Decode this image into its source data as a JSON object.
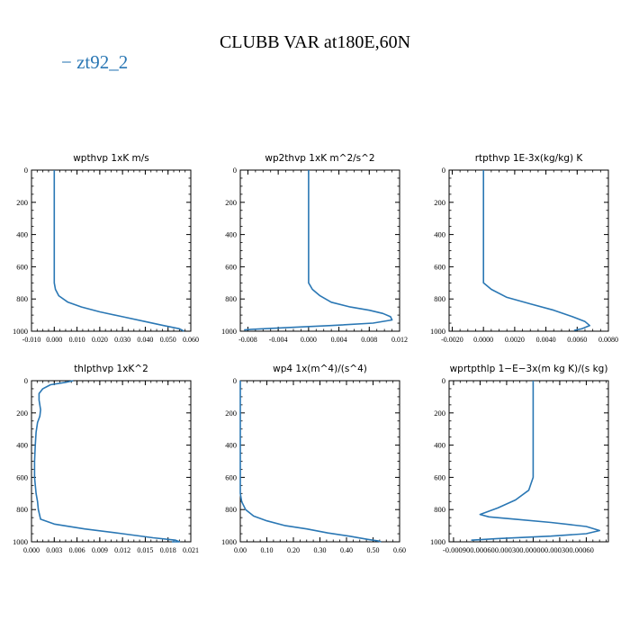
{
  "title": "CLUBB VAR at180E,60N",
  "legend": [
    {
      "label": "− zt92_2",
      "color": "#2a77b4"
    }
  ],
  "series_color": "#2a77b4",
  "chart_data": [
    {
      "type": "line",
      "title": "wpthvp  1xK m/s",
      "xlim": [
        -0.01,
        0.06
      ],
      "ylim": [
        0,
        1000
      ],
      "y_inverted": true,
      "xticks": [
        "-0.010",
        "0.000",
        "0.010",
        "0.020",
        "0.030",
        "0.040",
        "0.050",
        "0.060"
      ],
      "yticks": [
        "0",
        "200",
        "400",
        "600",
        "800",
        "1000"
      ],
      "series": [
        {
          "x": [
            0.0,
            0.0,
            0.0,
            0.0,
            0.0,
            0.0,
            0.0,
            0.0,
            0.0005,
            0.002,
            0.006,
            0.012,
            0.02,
            0.03,
            0.04,
            0.048,
            0.055,
            0.057
          ],
          "y": [
            0,
            100,
            200,
            300,
            400,
            500,
            600,
            700,
            740,
            780,
            820,
            850,
            880,
            910,
            940,
            965,
            985,
            1000
          ]
        }
      ]
    },
    {
      "type": "line",
      "title": "wp2thvp  1xK m^2/s^2",
      "xlim": [
        -0.009,
        0.012
      ],
      "ylim": [
        0,
        1000
      ],
      "y_inverted": true,
      "xticks": [
        "-0.008",
        "-0.004",
        "0.000",
        "0.004",
        "0.008",
        "0.012"
      ],
      "yticks": [
        "0",
        "200",
        "400",
        "600",
        "800",
        "1000"
      ],
      "series": [
        {
          "x": [
            0.0,
            0.0,
            0.0,
            0.0,
            0.0,
            0.0,
            0.0,
            0.0,
            0.0005,
            0.0015,
            0.003,
            0.0055,
            0.008,
            0.0098,
            0.0108,
            0.011,
            0.0085,
            0.003,
            -0.003,
            -0.0075,
            -0.0085
          ],
          "y": [
            0,
            100,
            200,
            300,
            400,
            500,
            600,
            700,
            740,
            780,
            820,
            850,
            870,
            890,
            910,
            930,
            950,
            965,
            978,
            988,
            992
          ]
        }
      ]
    },
    {
      "type": "line",
      "title": "rtpthvp  1E-3x(kg/kg) K",
      "xlim": [
        -0.0022,
        0.008
      ],
      "ylim": [
        0,
        1000
      ],
      "y_inverted": true,
      "xticks": [
        "-0.0020",
        "0.0000",
        "0.0020",
        "0.0040",
        "0.0060",
        "0.0080"
      ],
      "yticks": [
        "0",
        "200",
        "400",
        "600",
        "800",
        "1000"
      ],
      "series": [
        {
          "x": [
            0.0,
            0.0,
            0.0,
            0.0,
            0.0,
            0.0,
            0.0,
            0.0,
            0.0005,
            0.0015,
            0.003,
            0.0045,
            0.0057,
            0.0065,
            0.0068,
            0.0063,
            0.0058
          ],
          "y": [
            0,
            100,
            200,
            300,
            400,
            500,
            600,
            700,
            740,
            790,
            830,
            870,
            910,
            940,
            965,
            985,
            995
          ]
        }
      ]
    },
    {
      "type": "line",
      "title": "thlpthvp  1xK^2",
      "xlim": [
        0,
        0.021
      ],
      "ylim": [
        0,
        1000
      ],
      "y_inverted": true,
      "xticks": [
        "0.000",
        "0.003",
        "0.006",
        "0.009",
        "0.012",
        "0.015",
        "0.018",
        "0.021"
      ],
      "yticks": [
        "0",
        "200",
        "400",
        "600",
        "800",
        "1000"
      ],
      "series": [
        {
          "x": [
            0.0055,
            0.0045,
            0.0025,
            0.0015,
            0.001,
            0.001,
            0.0012,
            0.0011,
            0.0008,
            0.0006,
            0.0005,
            0.0004,
            0.0004,
            0.0006,
            0.0008,
            0.0009,
            0.0012,
            0.003,
            0.007,
            0.012,
            0.016,
            0.019,
            0.0195,
            0.0185
          ],
          "y": [
            0,
            10,
            25,
            50,
            80,
            120,
            180,
            220,
            260,
            320,
            400,
            500,
            600,
            700,
            750,
            800,
            860,
            890,
            920,
            950,
            975,
            990,
            1000,
            1000
          ]
        }
      ]
    },
    {
      "type": "line",
      "title": "wp4  1x(m^4)/(s^4)",
      "xlim": [
        0,
        0.6
      ],
      "ylim": [
        0,
        1000
      ],
      "y_inverted": true,
      "xticks": [
        "0.00",
        "0.10",
        "0.20",
        "0.30",
        "0.40",
        "0.50",
        "0.60"
      ],
      "yticks": [
        "0",
        "200",
        "400",
        "600",
        "800",
        "1000"
      ],
      "series": [
        {
          "x": [
            0.0,
            0.0,
            0.0,
            0.0,
            0.0,
            0.0,
            0.0,
            0.0,
            0.005,
            0.02,
            0.05,
            0.1,
            0.17,
            0.25,
            0.33,
            0.41,
            0.48,
            0.52,
            0.53
          ],
          "y": [
            0,
            100,
            200,
            300,
            400,
            500,
            600,
            700,
            750,
            800,
            840,
            870,
            900,
            920,
            945,
            965,
            985,
            995,
            1000
          ]
        }
      ]
    },
    {
      "type": "line",
      "title": "wprtpthlp  1−E−3x(m kg K)/(s kg)",
      "xlim": [
        -0.00095,
        0.00085
      ],
      "ylim": [
        0,
        1000
      ],
      "y_inverted": true,
      "xticks": [
        "-0.00090",
        "-0.00060",
        "-0.00030",
        "0.00000",
        "0.00030",
        "0.00060"
      ],
      "xticks_label_text": "-0.000900.000600.000300.000000.000300.00060",
      "yticks": [
        "0",
        "200",
        "400",
        "600",
        "800",
        "1000"
      ],
      "series": [
        {
          "x": [
            0.0,
            0.0,
            0.0,
            0.0,
            0.0,
            0.0,
            0.0,
            -5e-05,
            -0.0002,
            -0.0004,
            -0.0006,
            -0.0005,
            -0.0002,
            0.0002,
            0.0006,
            0.00075,
            0.0006,
            0.0002,
            -0.0004,
            -0.0007
          ],
          "y": [
            0,
            100,
            200,
            300,
            400,
            500,
            600,
            680,
            740,
            790,
            830,
            845,
            860,
            880,
            905,
            930,
            950,
            965,
            980,
            990
          ]
        }
      ]
    }
  ]
}
